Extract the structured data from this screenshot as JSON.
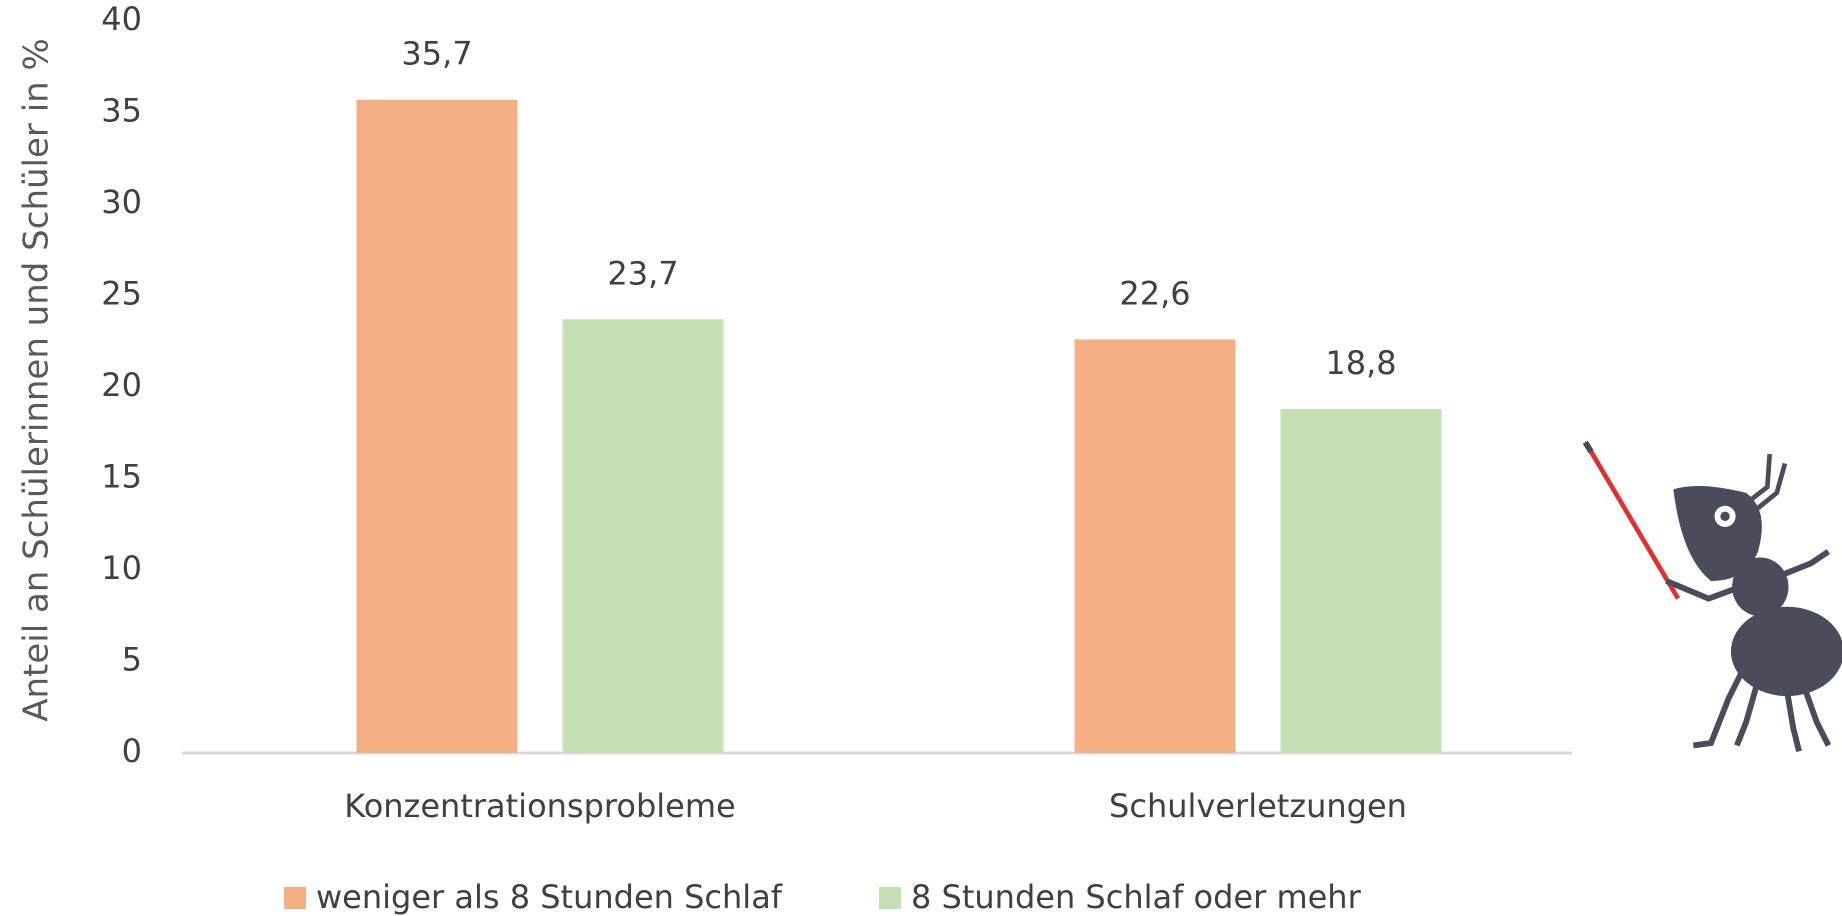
{
  "chart_data": {
    "type": "bar",
    "y_axis_label": "Anteil an Schülerinnen und Schüler in %",
    "categories": [
      "Konzentrationsprobleme",
      "Schulverletzungen"
    ],
    "series": [
      {
        "name": "weniger als 8 Stunden Schlaf",
        "color": "#f4b084",
        "values": [
          35.7,
          22.6
        ],
        "value_labels": [
          "35,7",
          "22,6"
        ]
      },
      {
        "name": "8 Stunden Schlaf oder mehr",
        "color": "#c5e0b4",
        "values": [
          23.7,
          18.8
        ],
        "value_labels": [
          "23,7",
          "18,8"
        ]
      }
    ],
    "ylim": [
      0,
      40
    ],
    "yticks": [
      0,
      5,
      10,
      15,
      20,
      25,
      30,
      35,
      40
    ],
    "grid": false,
    "legend": "bottom"
  }
}
